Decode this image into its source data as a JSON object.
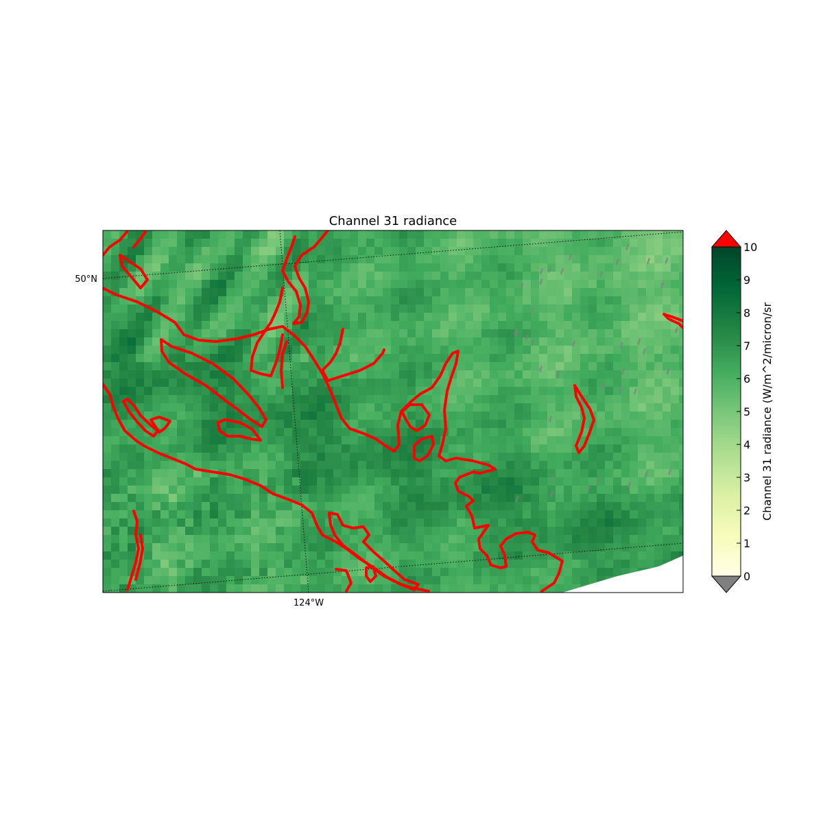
{
  "title": "Channel 31 radiance",
  "map": {
    "latitude_labels": [
      "50°N"
    ],
    "longitude_labels": [
      "124°W"
    ],
    "coastline_color": "#ff0000",
    "gridline_style": "dotted",
    "missing_data_color": "#808080",
    "no_data_color": "#ffffff"
  },
  "colorbar": {
    "label": "Channel 31 radiance (W/m^2/micron/sr",
    "min": 0,
    "max": 10,
    "ticks": [
      "0",
      "1",
      "2",
      "3",
      "4",
      "5",
      "6",
      "7",
      "8",
      "9",
      "10"
    ],
    "colormap": "YlGn",
    "colormap_stops": [
      "#ffffe5",
      "#f7fcb9",
      "#d9f0a3",
      "#addd8e",
      "#78c679",
      "#41ab5d",
      "#238443",
      "#006837",
      "#004529"
    ],
    "extend_over_color": "#ff0000",
    "extend_under_color": "#808080"
  }
}
